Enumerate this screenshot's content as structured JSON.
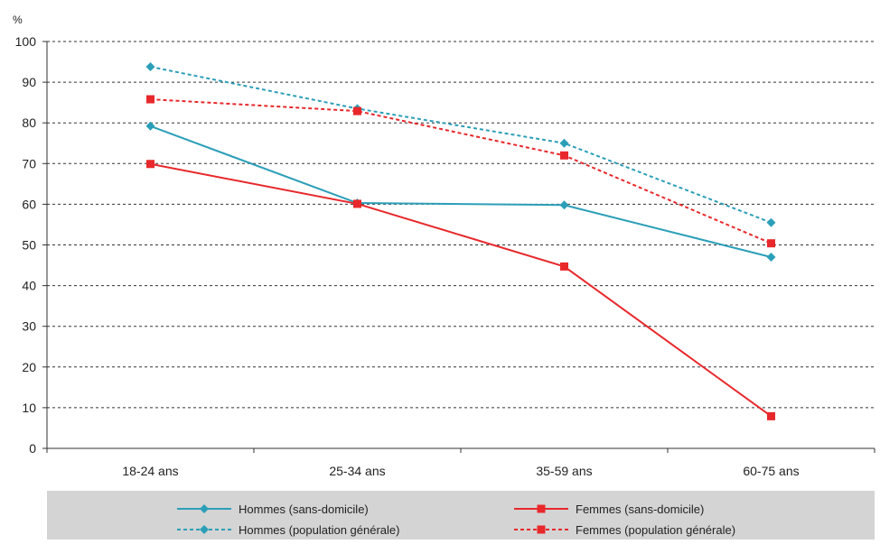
{
  "chart_data": {
    "type": "line",
    "ylabel": "%",
    "ylim": [
      0,
      100
    ],
    "yticks": [
      0,
      10,
      20,
      30,
      40,
      50,
      60,
      70,
      80,
      90,
      100
    ],
    "grid": true,
    "legend_position": "bottom",
    "categories": [
      "18-24 ans",
      "25-34 ans",
      "35-59 ans",
      "60-75 ans"
    ],
    "series": [
      {
        "name": "Hommes (sans-domicile)",
        "values": [
          79.2,
          60.3,
          59.8,
          47.0
        ],
        "color": "#2c9fb8",
        "style": "solid",
        "marker": "diamond"
      },
      {
        "name": "Femmes (sans-domicile)",
        "values": [
          69.9,
          60.1,
          44.7,
          7.9
        ],
        "color": "#e8282b",
        "style": "solid",
        "marker": "square"
      },
      {
        "name": "Hommes (population générale)",
        "values": [
          93.8,
          83.5,
          75.0,
          55.5
        ],
        "color": "#2c9fb8",
        "style": "dashed",
        "marker": "diamond"
      },
      {
        "name": "Femmes (population générale)",
        "values": [
          85.8,
          82.9,
          72.0,
          50.4
        ],
        "color": "#e8282b",
        "style": "dashed",
        "marker": "square"
      }
    ],
    "legend_order": [
      0,
      2,
      1,
      3
    ]
  },
  "colors": {
    "legend_background": "#d4d4d4",
    "axis": "#333333",
    "grid": "#333333"
  }
}
